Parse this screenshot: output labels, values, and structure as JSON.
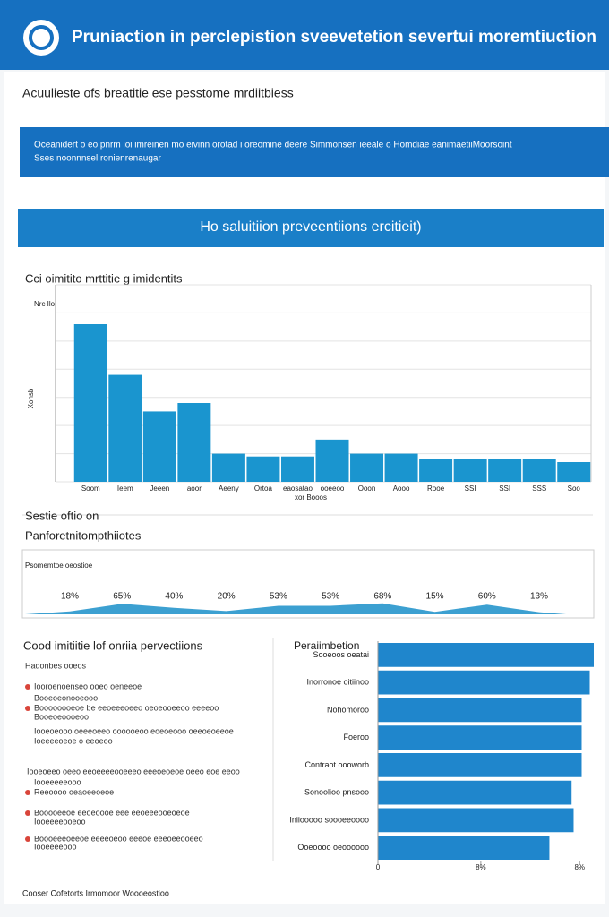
{
  "header": {
    "title": "Pruniaction in perclepistion sveevetetion severtui moremtiuction"
  },
  "subtitle": "Acuulieste ofs breatitie ese pesstome mrdiitbiess",
  "banner": {
    "lines": [
      "Oceanidert o eo pnrm ioi imreinen mo eivinn orotad i oreomine deere Simmonsen ieeale o Homdiae eanimaetiiMoorsoint",
      "Sses noonnnsel ronienrenaugar"
    ]
  },
  "section_banner": "Ho saluitiion preveentiions ercitieit)",
  "section2": {
    "title": "Sestie oftio on",
    "subtitle": "Panforetnitompthiiotes"
  },
  "list": {
    "title": "Cood imitiitie lof onriia pervectiions",
    "items": [
      "Hadonbes ooeos",
      "Iooroenoenseo ooeo oeneeoe",
      "Booeoeonooeooo",
      "Boooooooeoe be eeoeeeoeeo oeoeooeeoo eeeeoo",
      "Booeoeoooeoo",
      "Iooeoeooo oeeeoeeo oooooeoo eoeoeooo oeeoeoeeoe",
      "Ioeeeeoeoe o eeoeoo",
      "Iooeoeeo oeeo eeoeeeeooeeeo eeeoeoeoe oeeo eoe eeoo",
      "Iooeeeeeooo",
      "Reeoooo oeaoeeoeoe",
      "Booooeeoe eeoeoooe eee eeoeeeooeoeoe",
      "Iooeeeeooeoo",
      "Boooeeeoeeoe eeeeoeoo eeeoe eeeoeeooeeo",
      "Iooeeeeooo"
    ]
  },
  "footer": "Cooser Cofetorts Irmomoor Woooeostioo",
  "chart_data": [
    {
      "type": "bar",
      "title": "Cci oimitito mrttitie g imidentits",
      "y_unit": "Nrc Ilo",
      "y_label": "Xonsb",
      "x_label": "xor Booos",
      "categories": [
        "Soom",
        "Ieem",
        "Jeeen",
        "aoor",
        "Aeeny",
        "Ortoa",
        "eaosatao",
        "ooeeoo",
        "Ooon",
        "Aooo",
        "Rooe",
        "SSI",
        "SSI",
        "SSS",
        "Soo"
      ],
      "values": [
        5.6,
        3.8,
        2.5,
        2.8,
        1.0,
        0.9,
        0.9,
        1.5,
        1.0,
        1.0,
        0.8,
        0.8,
        0.8,
        0.8,
        0.7
      ],
      "color": "#1a95cf",
      "ylim": [
        0,
        7
      ],
      "yticks": [
        0,
        1,
        2,
        3,
        4,
        5,
        6,
        7
      ],
      "grid": true
    },
    {
      "type": "area",
      "label": "Psomemtoe oeostioe",
      "values": [
        18,
        65,
        40,
        20,
        53,
        53,
        68,
        15,
        60,
        13
      ],
      "value_labels": [
        "18%",
        "65%",
        "40%",
        "20%",
        "53%",
        "53%",
        "68%",
        "15%",
        "60%",
        "13%"
      ],
      "color": "#1a8fc9",
      "ylim": [
        0,
        100
      ]
    },
    {
      "type": "hbar",
      "title": "Peraiimbetion",
      "categories": [
        "Sooeoos oeatai",
        "Inorronoe oitiinoo",
        "Nohomoroo",
        "Foeroo",
        "Contraot oooworb",
        "Sonoolioo pnsooo",
        "Iniiooooo soooeeoooo",
        "Ooeoooo oeoooooo"
      ],
      "values": [
        107,
        105,
        101,
        101,
        101,
        96,
        97,
        85
      ],
      "color": "#1f86cc",
      "xlim": [
        0,
        107
      ],
      "xticks": [
        {
          "value": 0,
          "label": "0"
        },
        {
          "value": 51,
          "label": "8%"
        },
        {
          "value": 100,
          "label": "8%"
        }
      ]
    }
  ]
}
